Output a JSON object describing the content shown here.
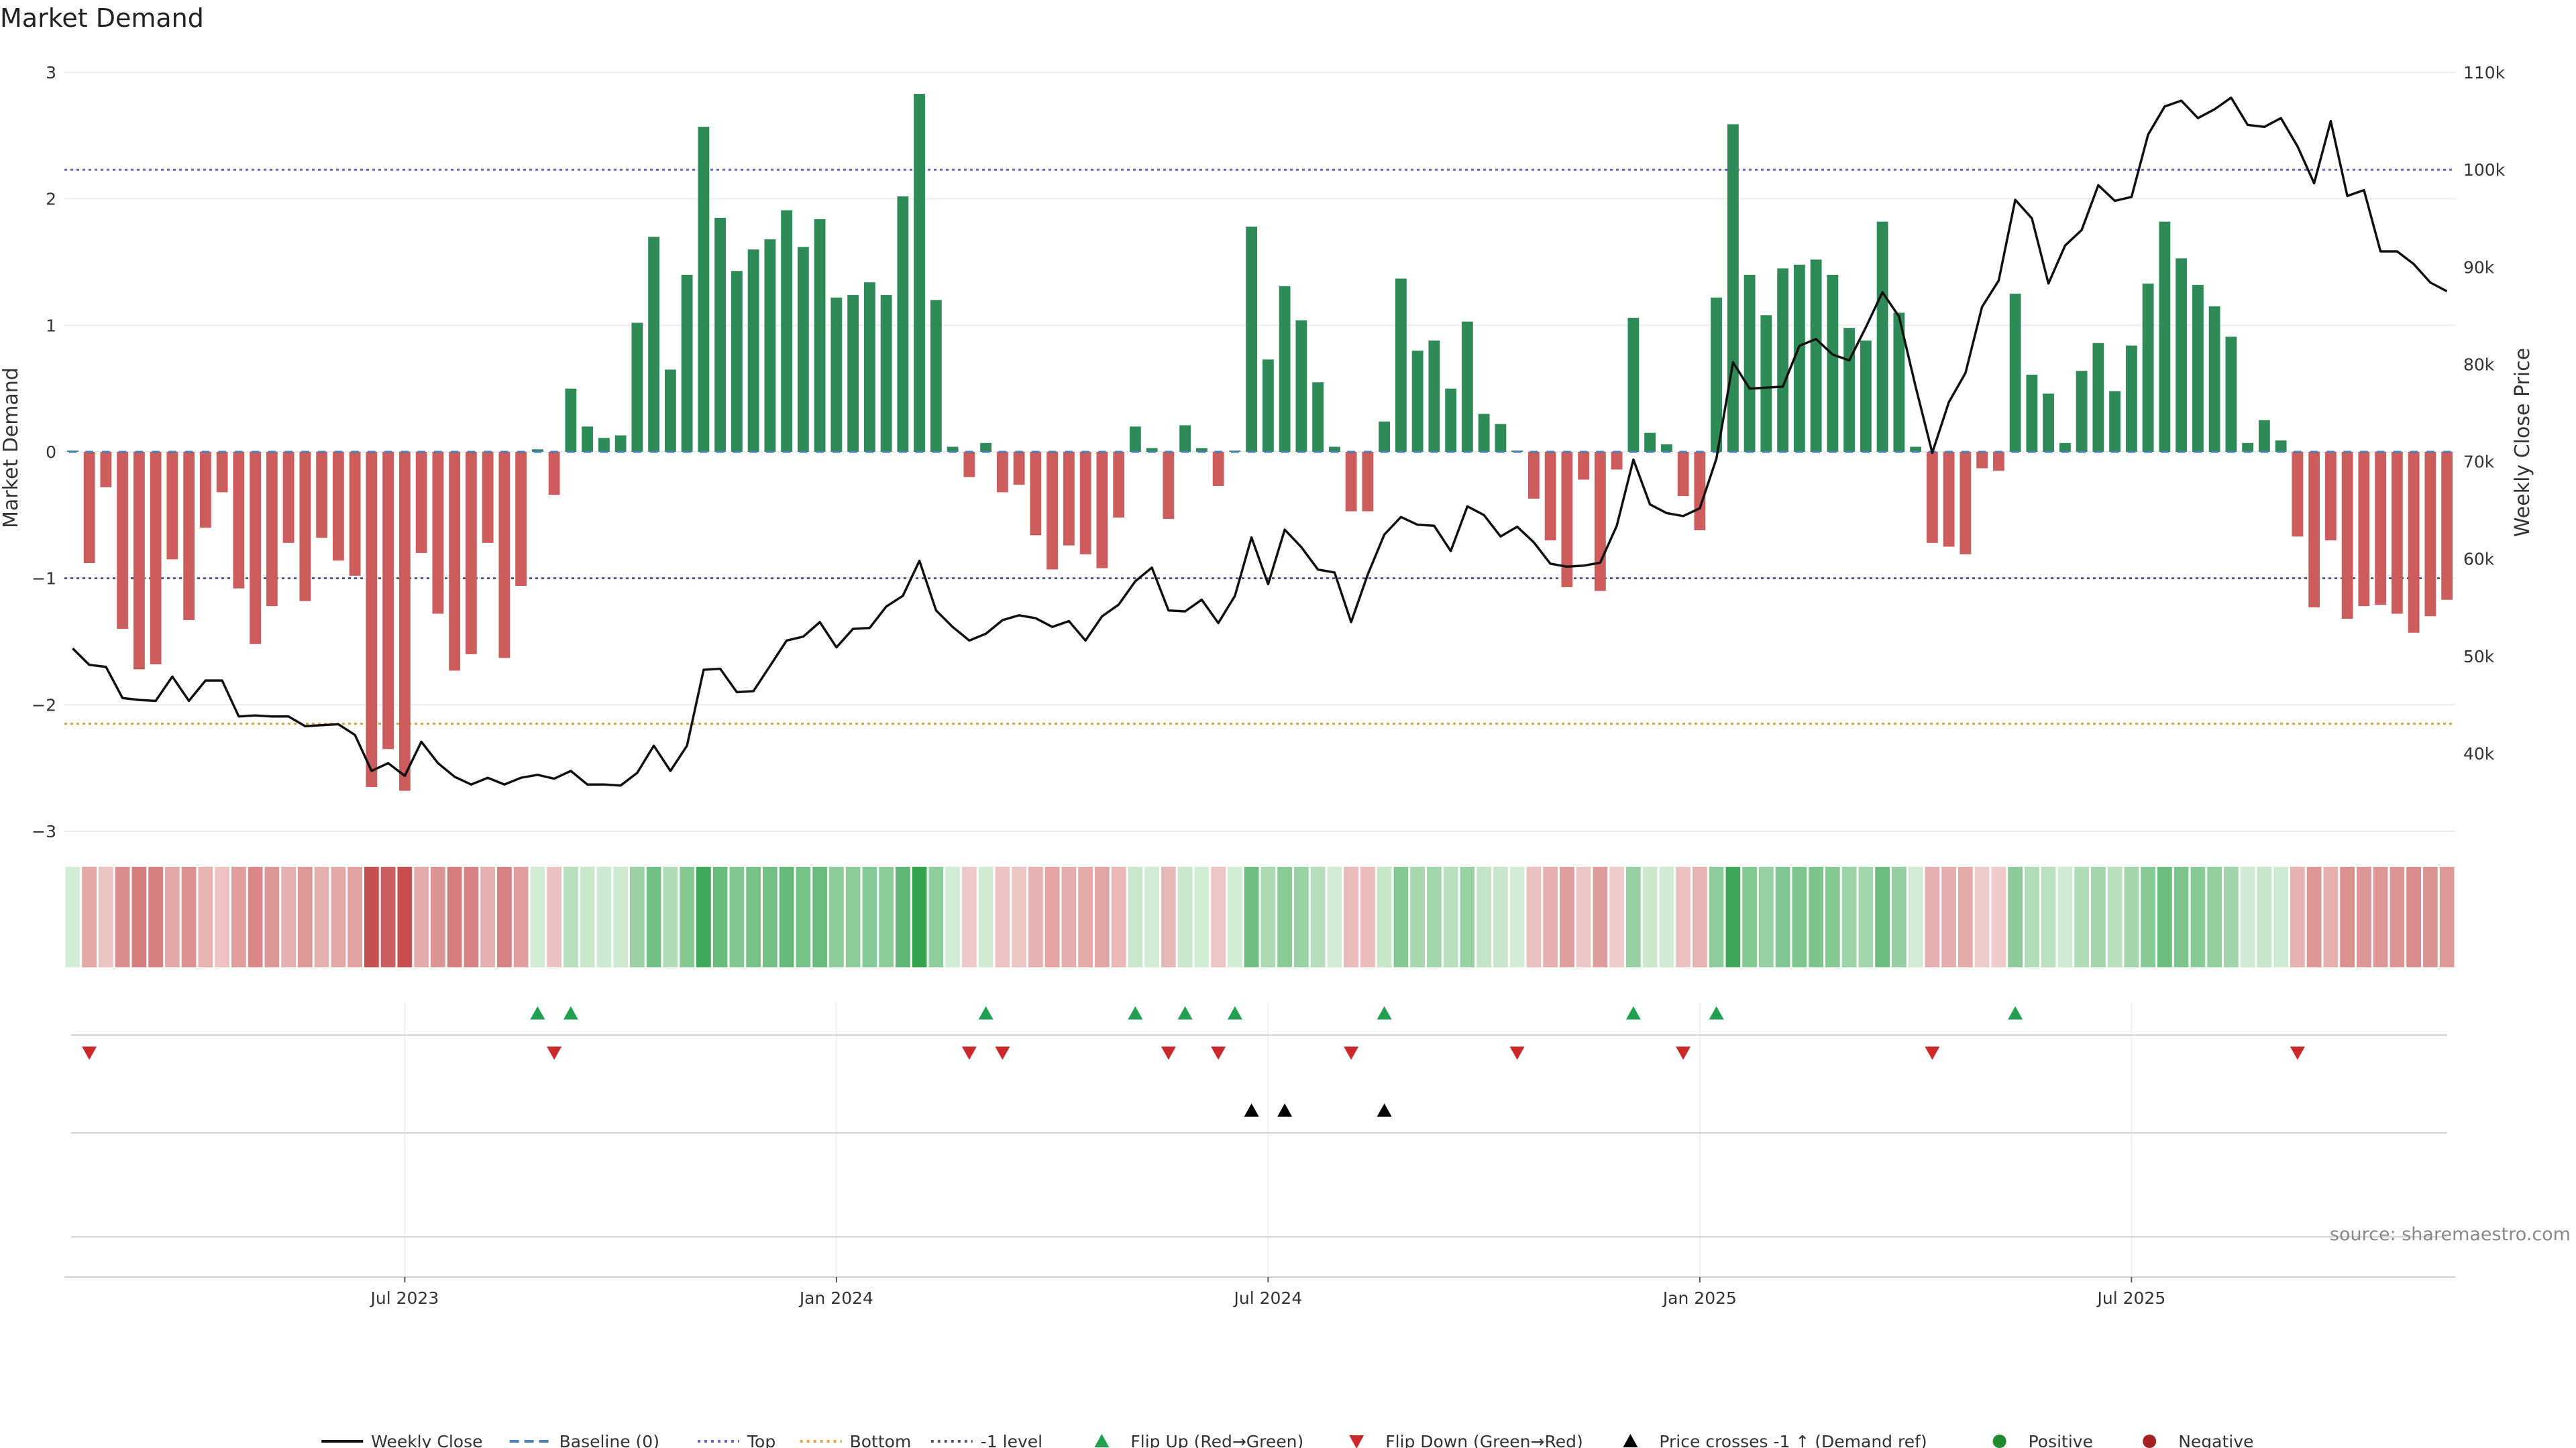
{
  "chart_data": {
    "type": "bar",
    "title": "Market Demand",
    "ylabel": "Market Demand",
    "y2label": "Weekly Close Price",
    "ylim": [
      -3,
      3
    ],
    "y2lim": [
      32000,
      110000
    ],
    "yticks": [
      "3",
      "2",
      "1",
      "0",
      "−1",
      "−2",
      "−3"
    ],
    "yticks_values": [
      3,
      2,
      1,
      0,
      -1,
      -2,
      -3
    ],
    "y2ticks": [
      "110k",
      "100k",
      "90k",
      "80k",
      "70k",
      "60k",
      "50k",
      "40k"
    ],
    "y2ticks_values": [
      110000,
      100000,
      90000,
      80000,
      70000,
      60000,
      50000,
      40000
    ],
    "xticks": [
      "Jul 2023",
      "Jan 2024",
      "Jul 2024",
      "Jan 2025",
      "Jul 2025"
    ],
    "xticks_week_index": [
      20,
      46,
      72,
      98,
      124
    ],
    "thresholds": {
      "top": 2.23,
      "bottom": -2.15,
      "minus_one": -1
    },
    "colors": {
      "positive": "#2e8b57",
      "negative": "#cd5c5c",
      "price": "#111111",
      "baseline": "#4a7fb5",
      "top": "#6666bb",
      "bottom": "#d9a441",
      "minus_one": "#555577",
      "flip_up": "#22a052",
      "flip_down": "#cc2a2a",
      "cross": "#000000",
      "positive_dot": "#1f8b2e",
      "negative_dot": "#a52222"
    },
    "demand": [
      0.01,
      -0.88,
      -0.28,
      -1.4,
      -1.72,
      -1.68,
      -0.85,
      -1.33,
      -0.6,
      -0.32,
      -1.08,
      -1.52,
      -1.22,
      -0.72,
      -1.18,
      -0.68,
      -0.86,
      -0.98,
      -2.65,
      -2.35,
      -2.68,
      -0.8,
      -1.28,
      -1.73,
      -1.6,
      -0.72,
      -1.63,
      -1.06,
      0.02,
      -0.34,
      0.5,
      0.2,
      0.11,
      0.13,
      1.02,
      1.7,
      0.65,
      1.4,
      2.57,
      1.85,
      1.43,
      1.6,
      1.68,
      1.91,
      1.62,
      1.84,
      1.22,
      1.24,
      1.34,
      1.24,
      2.02,
      2.83,
      1.2,
      0.04,
      -0.2,
      0.07,
      -0.32,
      -0.26,
      -0.66,
      -0.93,
      -0.74,
      -0.81,
      -0.92,
      -0.52,
      0.2,
      0.03,
      -0.53,
      0.21,
      0.03,
      -0.27,
      0.01,
      1.78,
      0.73,
      1.31,
      1.04,
      0.55,
      0.04,
      -0.47,
      -0.47,
      0.24,
      1.37,
      0.8,
      0.88,
      0.5,
      1.03,
      0.3,
      0.22,
      0.01,
      -0.37,
      -0.7,
      -1.07,
      -0.22,
      -1.1,
      -0.14,
      1.06,
      0.15,
      0.06,
      -0.35,
      -0.62,
      1.22,
      2.59,
      1.4,
      1.08,
      1.45,
      1.48,
      1.52,
      1.4,
      0.98,
      0.88,
      1.82,
      1.1,
      0.04,
      -0.72,
      -0.75,
      -0.81,
      -0.13,
      -0.15,
      1.25,
      0.61,
      0.46,
      0.07,
      0.64,
      0.86,
      0.48,
      0.84,
      1.33,
      1.82,
      1.53,
      1.32,
      1.15,
      0.91,
      0.07,
      0.25,
      0.09,
      -0.67,
      -1.23,
      -0.7,
      -1.32,
      -1.22,
      -1.21,
      -1.28,
      -1.43,
      -1.3,
      -1.17
    ],
    "price": [
      50800,
      49100,
      48900,
      45700,
      45500,
      45400,
      47900,
      45400,
      47500,
      47500,
      43800,
      43900,
      43800,
      43800,
      42800,
      42900,
      43000,
      41900,
      38200,
      39000,
      37700,
      41200,
      39000,
      37600,
      36800,
      37500,
      36800,
      37500,
      37800,
      37400,
      38200,
      36800,
      36800,
      36700,
      38000,
      40800,
      38200,
      40800,
      48600,
      48700,
      46300,
      46400,
      49000,
      51600,
      52000,
      53500,
      50900,
      52800,
      52900,
      55100,
      56200,
      59800,
      54700,
      53000,
      51600,
      52300,
      53700,
      54200,
      53900,
      53000,
      53600,
      51600,
      54100,
      55300,
      57700,
      59100,
      54700,
      54600,
      55800,
      53400,
      56200,
      62200,
      57400,
      63000,
      61200,
      58900,
      58600,
      53500,
      58400,
      62500,
      64300,
      63500,
      63400,
      60800,
      65400,
      64500,
      62300,
      63300,
      61700,
      59500,
      59200,
      59300,
      59600,
      63400,
      70200,
      65600,
      64700,
      64400,
      65200,
      70300,
      80200,
      77500,
      77600,
      77700,
      81900,
      82600,
      81000,
      80400,
      83800,
      87400,
      84900,
      77700,
      70900,
      76100,
      79100,
      85900,
      88600,
      96900,
      95000,
      88300,
      92200,
      93800,
      98400,
      96800,
      97200,
      103600,
      106500,
      107100,
      105300,
      106200,
      107400,
      104600,
      104400,
      105300,
      102400,
      98600,
      105000,
      97300,
      97900,
      91600,
      91600,
      90300,
      88400,
      87500
    ],
    "flip_up_weeks": [
      28,
      30,
      55,
      64,
      67,
      70,
      79,
      94,
      99,
      117
    ],
    "flip_down_weeks": [
      1,
      29,
      54,
      56,
      66,
      69,
      77,
      87,
      97,
      112,
      134
    ],
    "price_cross_weeks": [
      71,
      73,
      79
    ],
    "legend": [
      {
        "key": "weekly_close",
        "label": "Weekly Close",
        "swatch": "line"
      },
      {
        "key": "baseline",
        "label": "Baseline (0)",
        "swatch": "dash"
      },
      {
        "key": "top",
        "label": "Top",
        "swatch": "dot"
      },
      {
        "key": "bottom",
        "label": "Bottom",
        "swatch": "dot"
      },
      {
        "key": "minus_one",
        "label": "-1 level",
        "swatch": "dot"
      },
      {
        "key": "flip_up",
        "label": "Flip Up (Red→Green)",
        "swatch": "tri-up"
      },
      {
        "key": "flip_down",
        "label": "Flip Down (Green→Red)",
        "swatch": "tri-down"
      },
      {
        "key": "cross",
        "label": "Price crosses -1 ↑ (Demand ref)",
        "swatch": "tri-up-black"
      },
      {
        "key": "positive",
        "label": "Positive",
        "swatch": "circle"
      },
      {
        "key": "negative",
        "label": "Negative",
        "swatch": "circle"
      }
    ],
    "legend_placement": "bottom-center",
    "source": "source: sharemaestro.com",
    "grid": true
  }
}
